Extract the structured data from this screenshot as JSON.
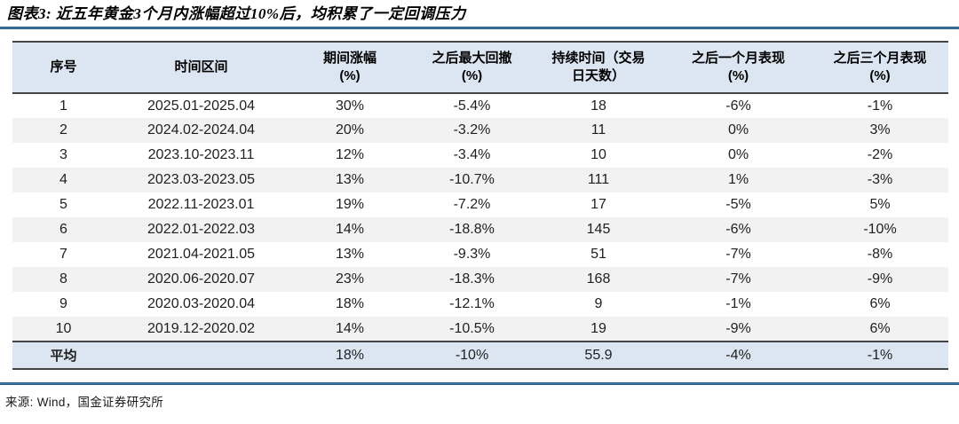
{
  "figure": {
    "title": "图表3:  近五年黄金3个月内涨幅超过10%后，均积累了一定回调压力",
    "source": "来源: Wind，国金证券研究所"
  },
  "table": {
    "columns": [
      {
        "line1": "序号",
        "line2": ""
      },
      {
        "line1": "时间区间",
        "line2": ""
      },
      {
        "line1": "期间涨幅",
        "line2": "(%)"
      },
      {
        "line1": "之后最大回撤",
        "line2": "(%)"
      },
      {
        "line1": "持续时间（交易",
        "line2": "日天数）"
      },
      {
        "line1": "之后一个月表现",
        "line2": "(%)"
      },
      {
        "line1": "之后三个月表现",
        "line2": "(%)"
      }
    ],
    "rows": [
      [
        "1",
        "2025.01-2025.04",
        "30%",
        "-5.4%",
        "18",
        "-6%",
        "-1%"
      ],
      [
        "2",
        "2024.02-2024.04",
        "20%",
        "-3.2%",
        "11",
        "0%",
        "3%"
      ],
      [
        "3",
        "2023.10-2023.11",
        "12%",
        "-3.4%",
        "10",
        "0%",
        "-2%"
      ],
      [
        "4",
        "2023.03-2023.05",
        "13%",
        "-10.7%",
        "111",
        "1%",
        "-3%"
      ],
      [
        "5",
        "2022.11-2023.01",
        "19%",
        "-7.2%",
        "17",
        "-5%",
        "5%"
      ],
      [
        "6",
        "2022.01-2022.03",
        "14%",
        "-18.8%",
        "145",
        "-6%",
        "-10%"
      ],
      [
        "7",
        "2021.04-2021.05",
        "13%",
        "-9.3%",
        "51",
        "-7%",
        "-8%"
      ],
      [
        "8",
        "2020.06-2020.07",
        "23%",
        "-18.3%",
        "168",
        "-7%",
        "-9%"
      ],
      [
        "9",
        "2020.03-2020.04",
        "18%",
        "-12.1%",
        "9",
        "-1%",
        "6%"
      ],
      [
        "10",
        "2019.12-2020.02",
        "14%",
        "-10.5%",
        "19",
        "-9%",
        "6%"
      ]
    ],
    "average_row": [
      "平均",
      "",
      "18%",
      "-10%",
      "55.9",
      "-4%",
      "-1%"
    ]
  },
  "colors": {
    "accent_rule": "#3e7ca8",
    "header_bg": "#dce6f2",
    "alt_row_bg": "#f2f2f2",
    "border_dark": "#454545"
  }
}
